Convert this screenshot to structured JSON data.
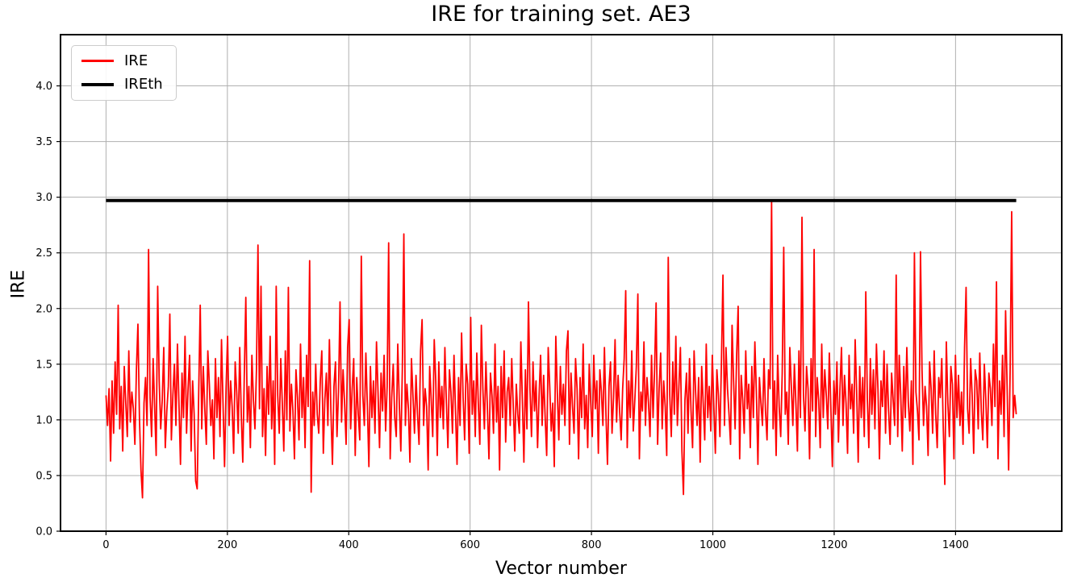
{
  "chart_data": {
    "type": "line",
    "title": "IRE for training set. AE3",
    "xlabel": "Vector number",
    "ylabel": "IRE",
    "xlim": [
      -75,
      1575
    ],
    "ylim": [
      0,
      4.46
    ],
    "xticks": [
      0,
      200,
      400,
      600,
      800,
      1000,
      1200,
      1400
    ],
    "yticks": [
      0.0,
      0.5,
      1.0,
      1.5,
      2.0,
      2.5,
      3.0,
      3.5,
      4.0
    ],
    "grid": true,
    "grid_color": "#b0b0b0",
    "axes_color": "#000000",
    "background_color": "#ffffff",
    "legend": {
      "position": "upper-left",
      "entries": [
        "IRE",
        "IREth"
      ]
    },
    "series": [
      {
        "name": "IRE",
        "color": "#ff0000",
        "linewidth": 1.8,
        "x_start": 0,
        "x_end": 1500,
        "y": [
          1.22,
          0.95,
          1.28,
          0.63,
          1.35,
          0.88,
          1.52,
          1.05,
          2.03,
          0.92,
          1.3,
          0.72,
          1.48,
          1.15,
          0.85,
          1.62,
          0.98,
          1.25,
          1.1,
          0.78,
          1.45,
          1.86,
          1.02,
          0.55,
          0.3,
          1.15,
          1.38,
          0.95,
          2.53,
          1.2,
          0.85,
          1.55,
          1.12,
          0.68,
          2.2,
          1.35,
          0.92,
          1.18,
          1.65,
          0.75,
          1.08,
          1.3,
          1.95,
          0.82,
          1.22,
          1.5,
          0.95,
          1.68,
          1.15,
          0.6,
          1.42,
          1.02,
          1.75,
          0.88,
          1.28,
          1.58,
          0.72,
          1.35,
          1.05,
          0.45,
          0.38,
          1.25,
          2.03,
          0.92,
          1.48,
          1.1,
          0.78,
          1.62,
          1.32,
          0.95,
          1.18,
          0.65,
          1.55,
          1.02,
          1.38,
          0.85,
          1.72,
          1.15,
          0.58,
          1.28,
          1.75,
          0.95,
          1.35,
          1.12,
          0.7,
          1.52,
          1.25,
          0.88,
          1.65,
          1.05,
          0.62,
          1.4,
          2.1,
          0.98,
          1.3,
          0.75,
          1.58,
          1.18,
          0.92,
          1.45,
          2.57,
          1.1,
          2.2,
          0.85,
          1.28,
          0.68,
          1.48,
          1.05,
          1.75,
          0.92,
          1.35,
          0.6,
          2.2,
          1.22,
          0.88,
          1.55,
          1.15,
          0.72,
          1.62,
          1.0,
          2.19,
          0.9,
          1.32,
          1.08,
          0.65,
          1.45,
          1.2,
          0.82,
          1.68,
          1.02,
          1.38,
          0.75,
          1.58,
          1.12,
          2.43,
          0.35,
          1.25,
          0.95,
          1.5,
          1.05,
          0.88,
          1.35,
          1.62,
          0.7,
          1.18,
          1.42,
          0.95,
          1.72,
          1.08,
          0.6,
          1.3,
          1.52,
          0.85,
          1.25,
          2.06,
          0.98,
          1.45,
          1.15,
          0.78,
          1.65,
          1.9,
          0.92,
          1.28,
          1.55,
          0.68,
          1.38,
          1.05,
          0.82,
          2.47,
          1.22,
          0.95,
          1.6,
          1.12,
          0.58,
          1.48,
          1.02,
          1.35,
          0.88,
          1.7,
          1.25,
          0.75,
          1.42,
          1.08,
          1.58,
          0.9,
          1.3,
          2.59,
          0.65,
          1.2,
          1.5,
          1.02,
          0.85,
          1.68,
          1.15,
          0.72,
          1.45,
          2.67,
          0.95,
          1.32,
          1.1,
          0.62,
          1.55,
          1.22,
          0.88,
          1.4,
          1.05,
          0.78,
          1.62,
          1.9,
          0.95,
          1.28,
          1.12,
          0.55,
          1.48,
          1.18,
          0.85,
          1.72,
          1.35,
          0.68,
          1.52,
          1.02,
          1.3,
          0.92,
          1.65,
          1.15,
          0.75,
          1.45,
          1.25,
          0.88,
          1.58,
          1.08,
          0.6,
          1.38,
          0.95,
          1.78,
          1.2,
          0.82,
          1.5,
          1.32,
          0.7,
          1.92,
          1.05,
          1.35,
          0.85,
          1.6,
          1.15,
          0.78,
          1.85,
          1.28,
          0.92,
          1.52,
          1.1,
          0.65,
          1.42,
          1.22,
          0.88,
          1.68,
          0.98,
          1.3,
          0.55,
          1.48,
          1.02,
          1.62,
          0.8,
          1.25,
          1.38,
          0.95,
          1.55,
          1.12,
          0.72,
          1.32,
          1.05,
          0.88,
          1.7,
          1.18,
          0.62,
          1.45,
          0.92,
          2.06,
          1.28,
          0.85,
          1.52,
          1.08,
          1.35,
          0.75,
          1.22,
          1.58,
          0.95,
          1.4,
          1.02,
          0.68,
          1.65,
          1.3,
          0.9,
          1.15,
          0.58,
          1.75,
          1.25,
          0.82,
          1.48,
          1.05,
          1.32,
          0.95,
          1.62,
          1.8,
          0.78,
          1.42,
          1.12,
          0.88,
          1.55,
          1.28,
          0.65,
          1.38,
          1.02,
          1.68,
          0.92,
          1.22,
          0.75,
          1.5,
          1.15,
          0.85,
          1.58,
          1.1,
          1.35,
          0.7,
          1.45,
          1.25,
          0.95,
          1.65,
          1.05,
          0.6,
          1.3,
          1.52,
          0.88,
          1.2,
          1.72,
          0.98,
          1.4,
          1.08,
          0.82,
          1.28,
          1.55,
          2.16,
          0.75,
          1.35,
          1.02,
          1.62,
          0.9,
          1.18,
          1.48,
          2.13,
          0.65,
          1.25,
          1.08,
          1.7,
          0.95,
          1.38,
          1.15,
          0.85,
          1.58,
          1.02,
          1.45,
          2.05,
          0.78,
          1.28,
          1.6,
          0.92,
          1.35,
          1.12,
          0.68,
          2.46,
          1.22,
          0.85,
          1.52,
          1.05,
          1.75,
          0.95,
          1.3,
          1.65,
          0.72,
          0.33,
          1.18,
          1.42,
          0.88,
          1.55,
          1.08,
          0.75,
          1.62,
          1.25,
          0.95,
          1.38,
          0.62,
          1.48,
          1.15,
          0.82,
          1.68,
          1.02,
          1.3,
          0.9,
          1.58,
          1.12,
          0.7,
          1.45,
          1.22,
          0.85,
          1.52,
          2.3,
          0.95,
          1.65,
          1.28,
          1.05,
          0.78,
          1.85,
          1.35,
          0.92,
          1.58,
          2.02,
          0.65,
          1.4,
          1.18,
          0.88,
          1.62,
          1.1,
          1.32,
          0.75,
          1.48,
          1.02,
          1.7,
          1.25,
          0.6,
          1.38,
          1.15,
          0.95,
          1.55,
          1.08,
          0.82,
          1.45,
          1.28,
          2.97,
          0.92,
          1.35,
          0.68,
          1.58,
          1.12,
          0.85,
          1.42,
          2.55,
          1.05,
          1.25,
          0.78,
          1.65,
          1.3,
          0.95,
          1.5,
          1.15,
          0.72,
          1.62,
          1.02,
          2.82,
          1.22,
          0.9,
          1.48,
          1.28,
          0.65,
          1.55,
          1.08,
          2.53,
          0.85,
          1.38,
          1.18,
          0.75,
          1.68,
          1.02,
          1.45,
          1.22,
          0.92,
          1.6,
          1.12,
          0.58,
          1.35,
          1.05,
          1.52,
          0.8,
          1.28,
          1.65,
          0.95,
          1.4,
          1.15,
          0.7,
          1.58,
          1.1,
          1.32,
          0.88,
          1.72,
          1.25,
          0.62,
          1.48,
          1.02,
          1.38,
          0.85,
          2.15,
          1.2,
          0.75,
          1.55,
          1.05,
          1.45,
          0.92,
          1.68,
          1.28,
          0.65,
          1.35,
          1.12,
          1.62,
          0.88,
          1.5,
          1.08,
          0.78,
          1.42,
          1.18,
          0.95,
          2.3,
          0.85,
          1.58,
          1.22,
          0.72,
          1.48,
          1.02,
          1.65,
          1.15,
          0.9,
          1.35,
          0.6,
          2.5,
          1.25,
          1.08,
          0.82,
          2.51,
          1.45,
          0.95,
          1.3,
          1.12,
          0.68,
          1.52,
          1.28,
          0.88,
          1.62,
          1.05,
          0.75,
          1.38,
          1.2,
          1.55,
          0.92,
          0.42,
          1.7,
          1.15,
          0.85,
          1.48,
          1.32,
          0.65,
          1.58,
          1.02,
          1.4,
          0.95,
          1.25,
          0.78,
          1.65,
          2.19,
          1.1,
          0.88,
          1.55,
          1.22,
          0.7,
          1.45,
          1.35,
          0.92,
          1.6,
          1.08,
          0.82,
          1.5,
          1.18,
          0.75,
          1.42,
          1.28,
          0.95,
          1.68,
          1.12,
          2.24,
          0.65,
          1.35,
          1.05,
          1.58,
          0.85,
          1.98,
          1.3,
          0.55,
          1.45,
          2.87,
          1.02,
          1.22,
          1.05
        ]
      },
      {
        "name": "IREth",
        "color": "#000000",
        "linewidth": 4,
        "x_start": 0,
        "x_end": 1500,
        "y_const": 2.97
      }
    ]
  }
}
